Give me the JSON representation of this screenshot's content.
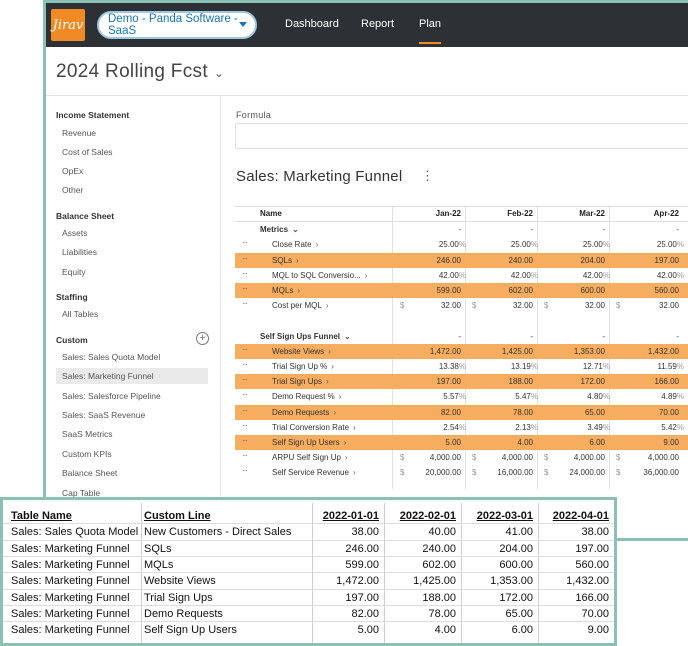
{
  "topbar": {
    "logo": "Jirav",
    "project": "Demo - Panda Software - SaaS",
    "nav": [
      "Dashboard",
      "Report",
      "Plan"
    ],
    "active_nav": "Plan"
  },
  "page": {
    "title": "2024 Rolling Fcst"
  },
  "sidebar": {
    "sections": [
      {
        "heading": "Income Statement",
        "items": [
          "Revenue",
          "Cost of Sales",
          "OpEx",
          "Other"
        ]
      },
      {
        "heading": "Balance Sheet",
        "items": [
          "Assets",
          "Liabilities",
          "Equity"
        ]
      },
      {
        "heading": "Staffing",
        "items": [
          "All Tables"
        ]
      },
      {
        "heading": "Custom",
        "items": [
          "Sales: Sales Quota Model",
          "Sales: Marketing Funnel",
          "Sales: Salesforce Pipeline",
          "Sales: SaaS Revenue",
          "SaaS Metrics",
          "Custom KPIs",
          "Balance Sheet",
          "Cap Table"
        ]
      }
    ],
    "active_item": "Sales: Marketing Funnel",
    "add_symbol": "+"
  },
  "main": {
    "formula_label": "Formula",
    "sheet_title": "Sales: Marketing Funnel",
    "columns": [
      "Name",
      "Jan-22",
      "Feb-22",
      "Mar-22",
      "Apr-22"
    ],
    "rows": [
      {
        "type": "section",
        "name": "Metrics",
        "values": [
          "-",
          "-",
          "-",
          "-"
        ]
      },
      {
        "type": "row",
        "name": "Close Rate",
        "values": [
          "25.00",
          "25.00",
          "25.00",
          "25.00"
        ],
        "unit": "%",
        "highlight": false
      },
      {
        "type": "row",
        "name": "SQLs",
        "values": [
          "246.00",
          "240.00",
          "204.00",
          "197.00"
        ],
        "highlight": true
      },
      {
        "type": "row",
        "name": "MQL to SQL Conversio...",
        "values": [
          "42.00",
          "42.00",
          "42.00",
          "42.00"
        ],
        "unit": "%",
        "highlight": false
      },
      {
        "type": "row",
        "name": "MQLs",
        "values": [
          "599.00",
          "602.00",
          "600.00",
          "560.00"
        ],
        "highlight": true
      },
      {
        "type": "row",
        "name": "Cost per MQL",
        "values": [
          "32.00",
          "32.00",
          "32.00",
          "32.00"
        ],
        "currency": "$",
        "highlight": false
      },
      {
        "type": "blank"
      },
      {
        "type": "section",
        "name": "Self Sign Ups Funnel",
        "values": [
          "-",
          "-",
          "-",
          "-"
        ]
      },
      {
        "type": "row",
        "name": "Website Views",
        "values": [
          "1,472.00",
          "1,425.00",
          "1,353.00",
          "1,432.00"
        ],
        "highlight": true
      },
      {
        "type": "row",
        "name": "Trial Sign Up %",
        "values": [
          "13.38",
          "13.19",
          "12.71",
          "11.59"
        ],
        "unit": "%",
        "highlight": false
      },
      {
        "type": "row",
        "name": "Trial Sign Ups",
        "values": [
          "197.00",
          "188.00",
          "172.00",
          "166.00"
        ],
        "highlight": true
      },
      {
        "type": "row",
        "name": "Demo Request %",
        "values": [
          "5.57",
          "5.47",
          "4.80",
          "4.89"
        ],
        "unit": "%",
        "highlight": false
      },
      {
        "type": "row",
        "name": "Demo Requests",
        "values": [
          "82.00",
          "78.00",
          "65.00",
          "70.00"
        ],
        "highlight": true
      },
      {
        "type": "row",
        "name": "Trial Conversion Rate",
        "values": [
          "2.54",
          "2.13",
          "3.49",
          "5.42"
        ],
        "unit": "%",
        "highlight": false
      },
      {
        "type": "row",
        "name": "Self Sign Up Users",
        "values": [
          "5.00",
          "4.00",
          "6.00",
          "9.00"
        ],
        "highlight": true
      },
      {
        "type": "row",
        "name": "ARPU Self Sign Up",
        "values": [
          "4,000.00",
          "4,000.00",
          "4,000.00",
          "4,000.00"
        ],
        "currency": "$",
        "highlight": false
      },
      {
        "type": "row",
        "name": "Self Service Revenue",
        "values": [
          "20,000.00",
          "16,000.00",
          "24,000.00",
          "36,000.00"
        ],
        "currency": "$",
        "highlight": false
      }
    ]
  },
  "lower_table": {
    "headers": [
      "Table Name",
      "Custom Line",
      "2022-01-01",
      "2022-02-01",
      "2022-03-01",
      "2022-04-01"
    ],
    "rows": [
      [
        "Sales: Sales Quota Model",
        "New Customers - Direct Sales",
        "38.00",
        "40.00",
        "41.00",
        "38.00"
      ],
      [
        "Sales: Marketing Funnel",
        "SQLs",
        "246.00",
        "240.00",
        "204.00",
        "197.00"
      ],
      [
        "Sales: Marketing Funnel",
        "MQLs",
        "599.00",
        "602.00",
        "600.00",
        "560.00"
      ],
      [
        "Sales: Marketing Funnel",
        "Website Views",
        "1,472.00",
        "1,425.00",
        "1,353.00",
        "1,432.00"
      ],
      [
        "Sales: Marketing Funnel",
        "Trial Sign Ups",
        "197.00",
        "188.00",
        "172.00",
        "166.00"
      ],
      [
        "Sales: Marketing Funnel",
        "Demo Requests",
        "82.00",
        "78.00",
        "65.00",
        "70.00"
      ],
      [
        "Sales: Marketing Funnel",
        "Self Sign Up Users",
        "5.00",
        "4.00",
        "6.00",
        "9.00"
      ]
    ]
  },
  "colors": {
    "highlight": "#f7ad5f",
    "brand": "#f08a24",
    "topbar": "#2d3034",
    "frame": "#8cc0b4"
  }
}
